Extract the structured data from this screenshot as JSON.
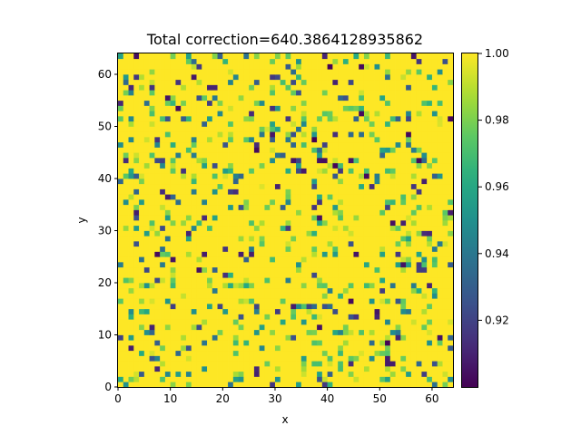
{
  "chart_data": {
    "type": "heatmap",
    "title": "Total correction=640.3864128935862",
    "xlabel": "x",
    "ylabel": "y",
    "grid_size": [
      64,
      64
    ],
    "xlim": [
      0,
      64
    ],
    "ylim": [
      0,
      64
    ],
    "x_ticks": [
      0,
      10,
      20,
      30,
      40,
      50,
      60
    ],
    "y_ticks": [
      0,
      10,
      20,
      30,
      40,
      50,
      60
    ],
    "colormap": "viridis",
    "value_range": [
      0.9,
      1.0
    ],
    "colorbar_ticks": [
      0.92,
      0.94,
      0.96,
      0.98,
      1.0
    ],
    "colorbar_tick_labels": [
      "0.92",
      "0.94",
      "0.96",
      "0.98",
      "1.00"
    ],
    "value_distribution": {
      "dominant_value": 1.0,
      "fraction_dominant": 0.82,
      "other_values_range": [
        0.9,
        0.995
      ]
    },
    "grid": false
  }
}
